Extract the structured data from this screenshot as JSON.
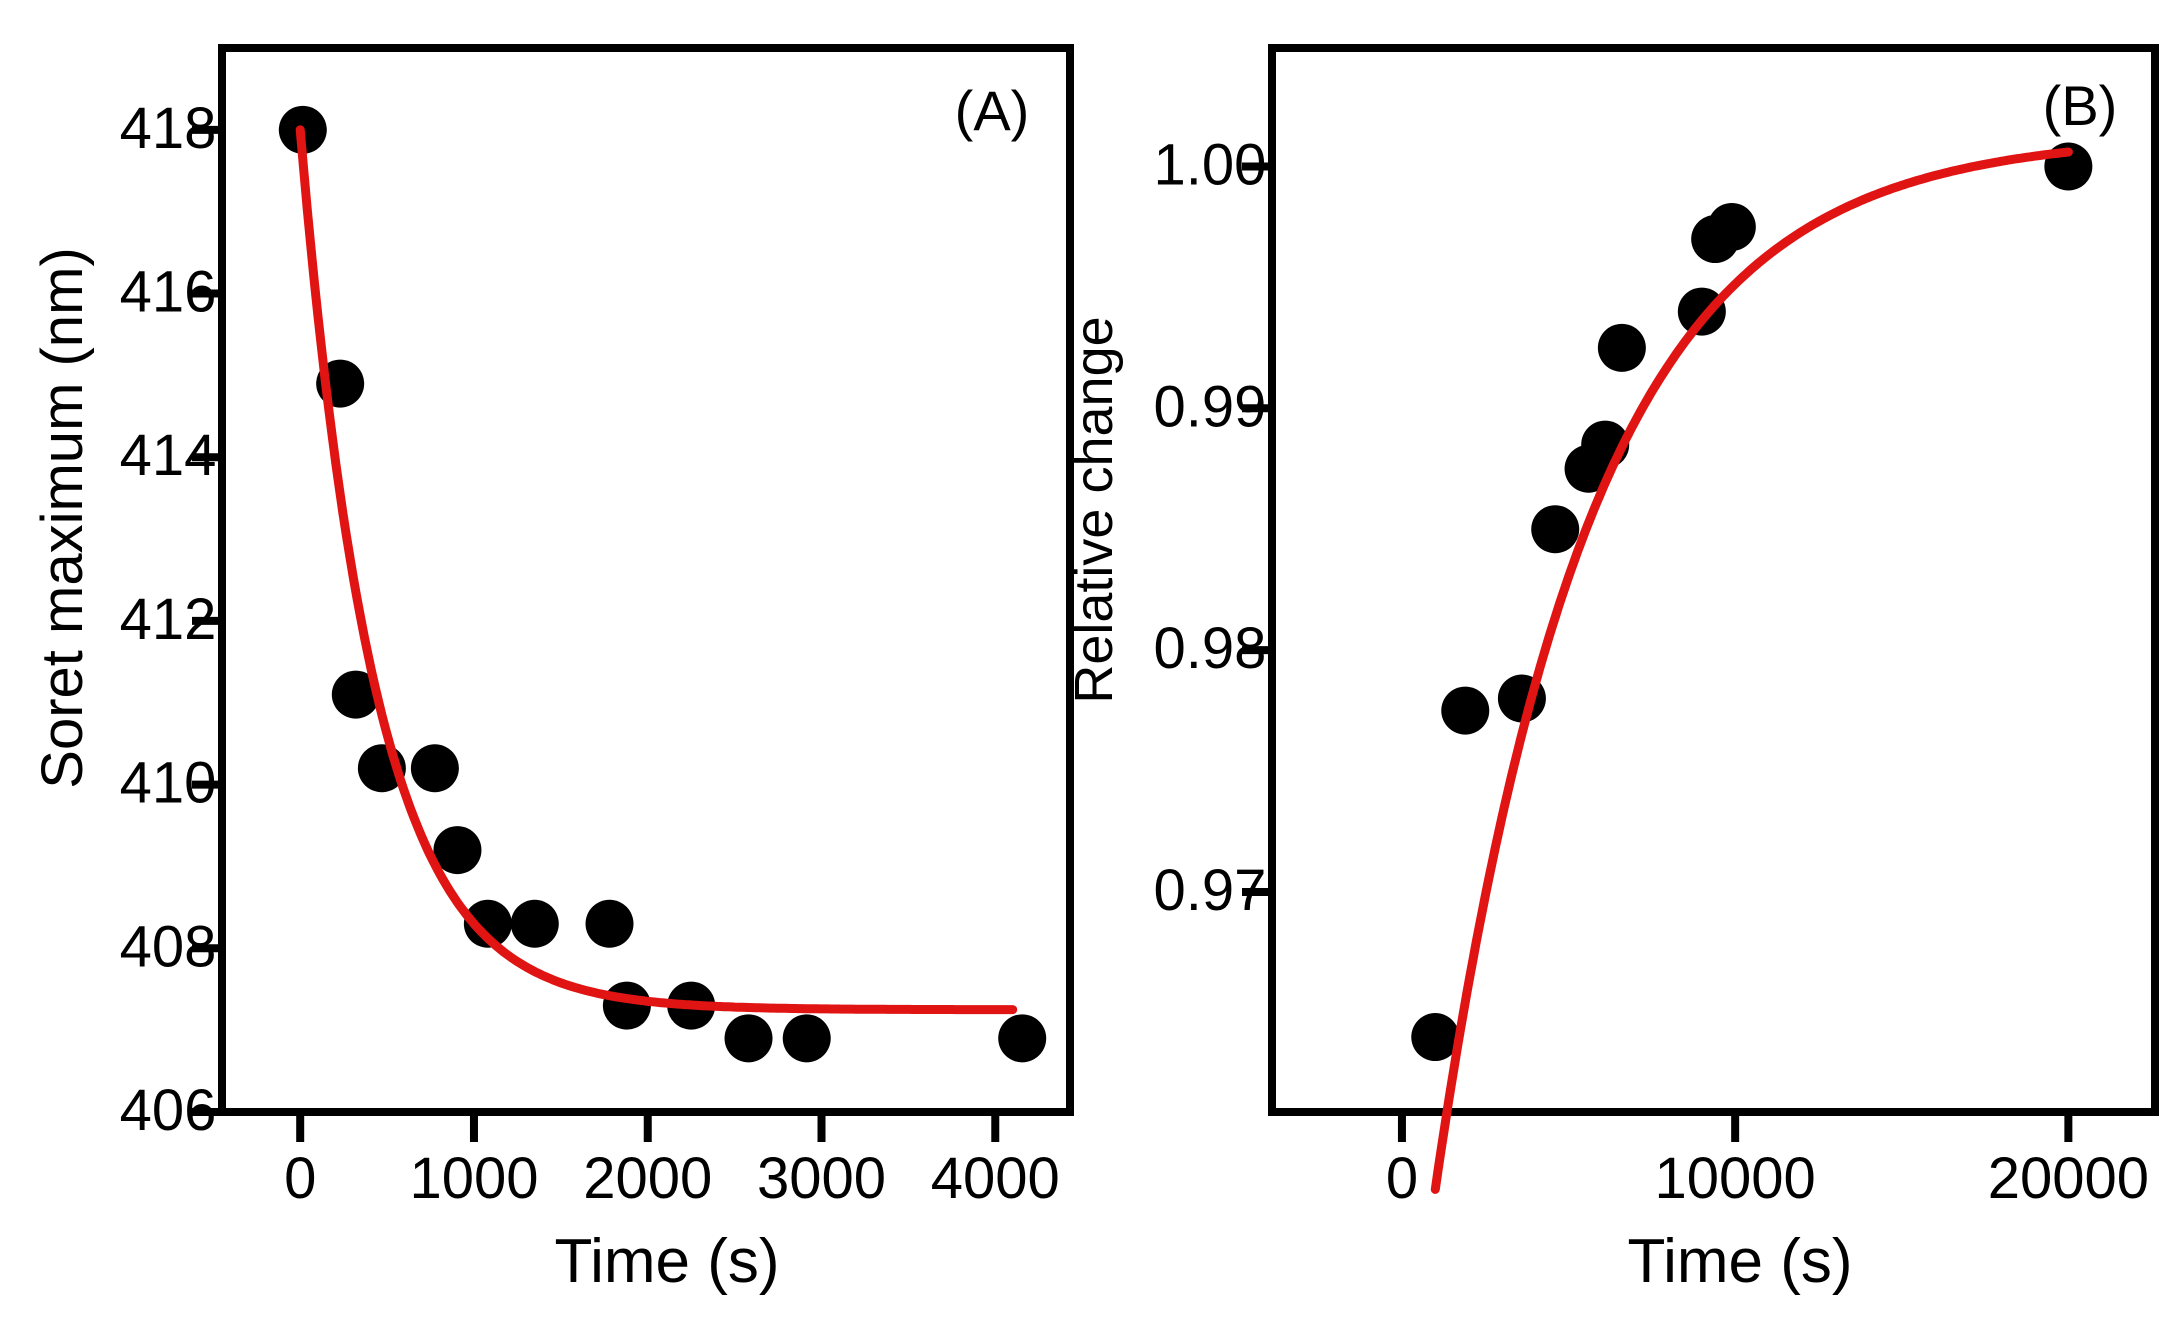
{
  "colors": {
    "fit": "#e11414",
    "point": "#000000",
    "axis": "#000000"
  },
  "chart_data": [
    {
      "type": "scatter",
      "panel_label": "(A)",
      "xlabel": "Time (s)",
      "ylabel": "Soret maximum (nm)",
      "xlim": [
        -450,
        4430
      ],
      "ylim": [
        406,
        419
      ],
      "x_ticks": [
        0,
        1000,
        2000,
        3000,
        4000
      ],
      "x_tick_labels": [
        "0",
        "1000",
        "2000",
        "3000",
        "4000"
      ],
      "y_ticks": [
        406,
        408,
        410,
        412,
        414,
        416,
        418
      ],
      "y_tick_labels": [
        "406",
        "408",
        "410",
        "412",
        "414",
        "416",
        "418"
      ],
      "series": [
        {
          "name": "data",
          "x": [
            15,
            230,
            320,
            470,
            775,
            905,
            1080,
            1350,
            1780,
            1880,
            2250,
            2580,
            2915,
            4155
          ],
          "y": [
            418.0,
            414.9,
            411.1,
            410.2,
            410.2,
            409.2,
            408.3,
            408.3,
            408.3,
            407.3,
            407.3,
            406.9,
            406.9,
            406.9
          ]
        },
        {
          "name": "fit",
          "model": "exponential_decay",
          "y0": 418.0,
          "plateau": 407.25,
          "tau": 430,
          "x_range": [
            0,
            4100
          ]
        }
      ]
    },
    {
      "type": "scatter",
      "panel_label": "(B)",
      "xlabel": "Time (s)",
      "ylabel": "Relative change",
      "xlim": [
        -3900,
        22600
      ],
      "ylim": [
        0.9609,
        1.0049
      ],
      "x_ticks": [
        0,
        10000,
        20000
      ],
      "x_tick_labels": [
        "0",
        "10000",
        "20000"
      ],
      "y_ticks": [
        0.97,
        0.98,
        0.99,
        1.0
      ],
      "y_tick_labels": [
        "0.97",
        "0.98",
        "0.99",
        "1.00"
      ],
      "series": [
        {
          "name": "data",
          "x": [
            1000,
            1900,
            3600,
            4600,
            5600,
            6100,
            6600,
            9000,
            9400,
            9900,
            20000
          ],
          "y": [
            0.964,
            0.9775,
            0.978,
            0.985,
            0.9875,
            0.9885,
            0.9925,
            0.994,
            0.997,
            0.9975,
            1.0
          ]
        },
        {
          "name": "fit",
          "model": "exponential_rise",
          "plateau": 1.0013,
          "amplitude": 0.0436,
          "x0": 1000,
          "tau": 4600,
          "x_range": [
            1000,
            20000
          ]
        }
      ]
    }
  ]
}
